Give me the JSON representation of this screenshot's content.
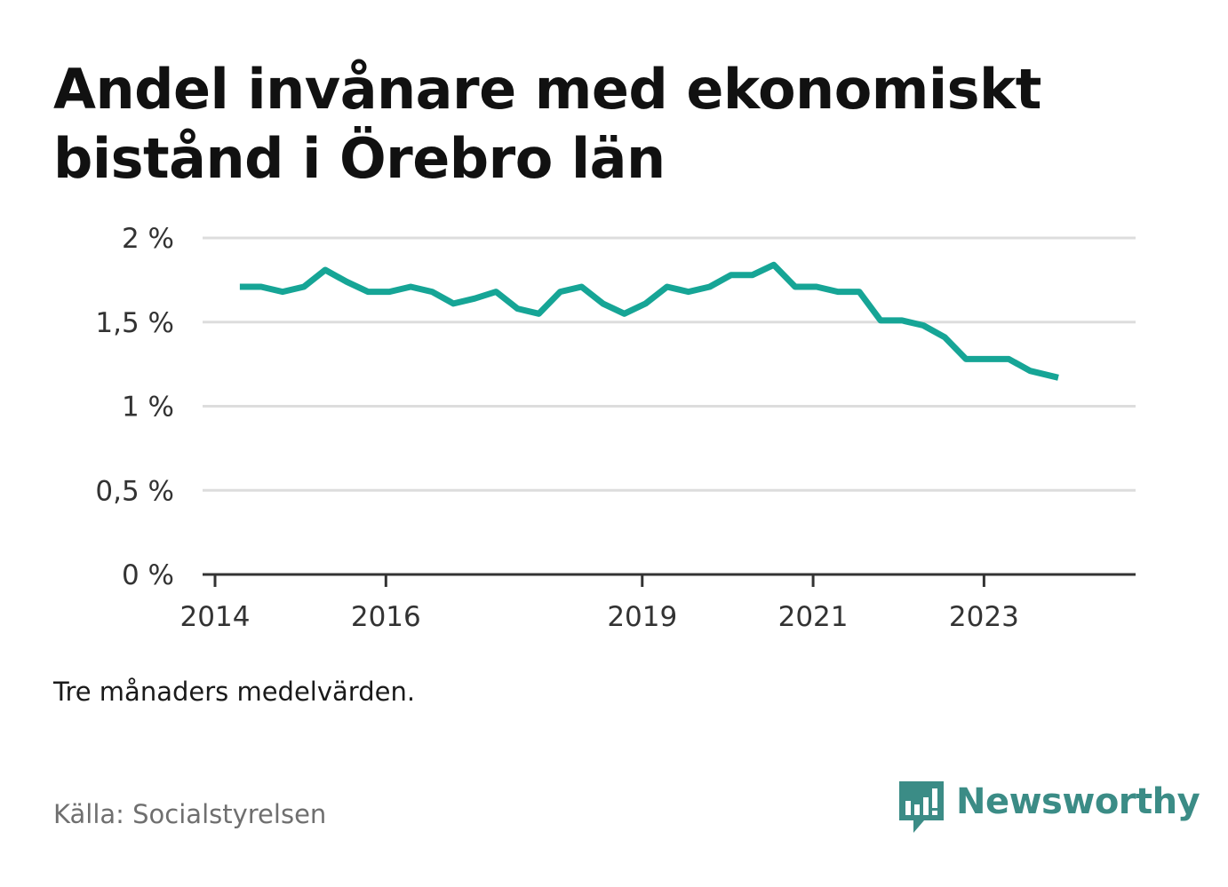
{
  "chart_data": {
    "type": "line",
    "title": "Andel invånare med ekonomiskt bistånd i Örebro län",
    "note": "Tre månaders medelvärden.",
    "source": "Källa: Socialstyrelsen",
    "x_ticks": [
      "2014",
      "2016",
      "2019",
      "2021",
      "2023"
    ],
    "x_tick_years": [
      2014,
      2016,
      2019,
      2021,
      2023
    ],
    "xlim": [
      2014,
      2024.4
    ],
    "y_ticks": [
      "2 %",
      "1,5 %",
      "1 %",
      "0,5 %",
      "0 %"
    ],
    "y_tick_values": [
      2,
      1.5,
      1,
      0.5,
      0
    ],
    "ylim": [
      0,
      2
    ],
    "grid": true,
    "line_color": "#16a596",
    "series": [
      {
        "x": [
          2014.29,
          2014.54,
          2014.79,
          2015.04,
          2015.29,
          2015.54,
          2015.79,
          2016.04,
          2016.29,
          2016.54,
          2016.79,
          2017.04,
          2017.29,
          2017.54,
          2017.79,
          2018.04,
          2018.29,
          2018.54,
          2018.79,
          2019.04,
          2019.29,
          2019.54,
          2019.79,
          2020.04,
          2020.29,
          2020.54,
          2020.79,
          2021.04,
          2021.29,
          2021.54,
          2021.79,
          2022.04,
          2022.29,
          2022.54,
          2022.79,
          2023.04,
          2023.29,
          2023.54,
          2023.87
        ],
        "values": [
          1.71,
          1.71,
          1.68,
          1.71,
          1.81,
          1.74,
          1.68,
          1.68,
          1.71,
          1.68,
          1.61,
          1.64,
          1.68,
          1.58,
          1.55,
          1.68,
          1.71,
          1.61,
          1.55,
          1.61,
          1.71,
          1.68,
          1.71,
          1.78,
          1.78,
          1.84,
          1.71,
          1.71,
          1.68,
          1.68,
          1.51,
          1.51,
          1.48,
          1.41,
          1.28,
          1.28,
          1.28,
          1.21,
          1.17
        ]
      }
    ]
  },
  "brand": {
    "name": "Newsworthy",
    "logo_icon": "newsworthy-bars-icon",
    "color": "#3b8c86"
  }
}
